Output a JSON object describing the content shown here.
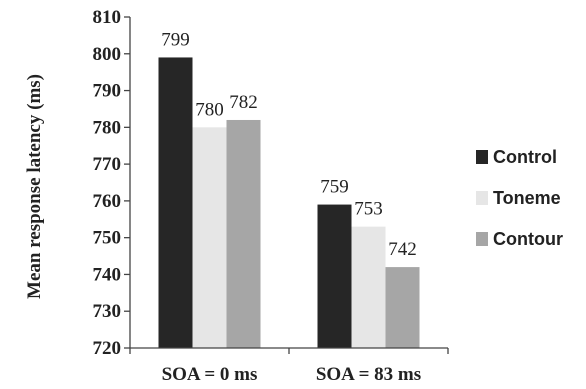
{
  "chart_data": {
    "type": "bar",
    "categories": [
      "SOA = 0 ms",
      "SOA = 83 ms"
    ],
    "series": [
      {
        "name": "Control",
        "values": [
          799,
          759
        ],
        "color": "#262626"
      },
      {
        "name": "Toneme",
        "values": [
          780,
          753
        ],
        "color": "#e6e6e6"
      },
      {
        "name": "Contour",
        "values": [
          782,
          742
        ],
        "color": "#a6a6a6"
      }
    ],
    "data_labels": [
      [
        "799",
        "780",
        "782"
      ],
      [
        "759",
        "753",
        "742"
      ]
    ],
    "ylabel": "Mean response latency (ms)",
    "xlabel": "",
    "title": "",
    "ylim": [
      720,
      810
    ],
    "yticks": [
      720,
      730,
      740,
      750,
      760,
      770,
      780,
      790,
      800,
      810
    ],
    "grid": false,
    "legend_position": "right"
  }
}
